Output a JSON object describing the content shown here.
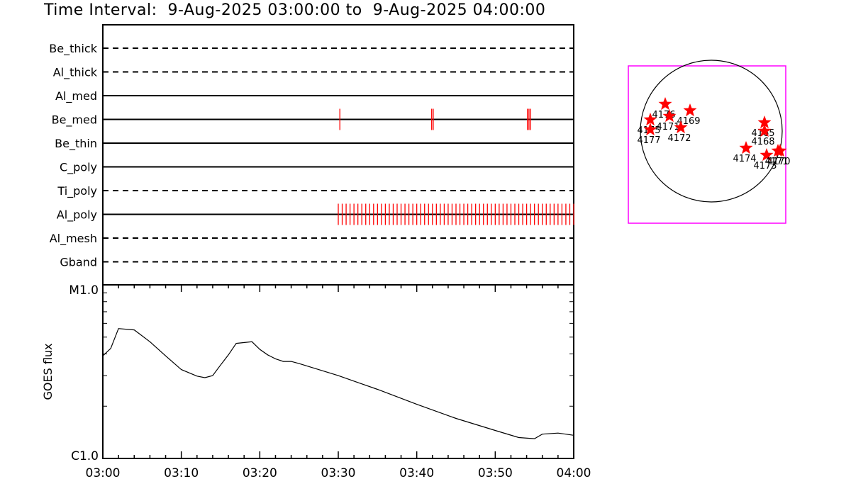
{
  "header": {
    "title_prefix": "Time Interval:",
    "start": "9-Aug-2025 03:00:00",
    "sep": "to",
    "end": "9-Aug-2025 04:00:00"
  },
  "chart_data": [
    {
      "type": "event-timeline",
      "x_range_minutes": [
        0,
        60
      ],
      "tracks": [
        {
          "name": "Be_thick",
          "style": "dashed",
          "events": []
        },
        {
          "name": "Al_thick",
          "style": "dashed",
          "events": []
        },
        {
          "name": "Al_med",
          "style": "solid",
          "events": []
        },
        {
          "name": "Be_med",
          "style": "solid",
          "events": [
            30.2,
            41.9,
            42.1,
            54.1,
            54.3,
            54.5
          ],
          "event_color": "#ff0000"
        },
        {
          "name": "Be_thin",
          "style": "solid",
          "events": []
        },
        {
          "name": "C_poly",
          "style": "solid",
          "events": []
        },
        {
          "name": "Ti_poly",
          "style": "dashed",
          "events": []
        },
        {
          "name": "Al_poly",
          "style": "solid",
          "events_range": {
            "start": 30.0,
            "end": 60.0,
            "step": 0.5
          },
          "event_color": "#ff0000"
        },
        {
          "name": "Al_mesh",
          "style": "dashed",
          "events": []
        },
        {
          "name": "Gband",
          "style": "dashed",
          "events": []
        }
      ]
    },
    {
      "type": "line",
      "ylabel": "GOES flux",
      "ylim_labels": [
        "C1.0",
        "M1.0"
      ],
      "yscale": "log",
      "ylim": [
        1e-06,
        1e-05
      ],
      "x_ticks": [
        "03:00",
        "03:10",
        "03:20",
        "03:30",
        "03:40",
        "03:50",
        "04:00"
      ],
      "x_minutes": [
        0,
        1,
        2,
        4,
        6,
        8,
        10,
        12,
        13,
        14,
        15,
        16,
        17,
        19,
        20,
        21,
        22,
        23,
        24,
        25,
        30,
        35,
        40,
        45,
        50,
        53,
        55,
        56,
        58,
        60
      ],
      "y": [
        3.9e-06,
        4.3e-06,
        5.6e-06,
        5.5e-06,
        4.7e-06,
        3.9e-06,
        3.25e-06,
        2.98e-06,
        2.92e-06,
        3e-06,
        3.45e-06,
        3.95e-06,
        4.6e-06,
        4.7e-06,
        4.25e-06,
        3.95e-06,
        3.75e-06,
        3.62e-06,
        3.62e-06,
        3.52e-06,
        3e-06,
        2.5e-06,
        2.05e-06,
        1.7e-06,
        1.45e-06,
        1.32e-06,
        1.3e-06,
        1.38e-06,
        1.4e-06,
        1.36e-06
      ]
    },
    {
      "type": "scatter",
      "description_free": true,
      "marker": "star",
      "marker_color": "#ff0000",
      "frame_color": "#ff00ff",
      "points": [
        {
          "label": "4175",
          "x": -0.86,
          "y": 0.16
        },
        {
          "label": "4176",
          "x": -0.65,
          "y": 0.38
        },
        {
          "label": "4171",
          "x": -0.59,
          "y": 0.21
        },
        {
          "label": "4169",
          "x": -0.3,
          "y": 0.29
        },
        {
          "label": "4172",
          "x": -0.43,
          "y": 0.05
        },
        {
          "label": "4177",
          "x": -0.86,
          "y": 0.02
        },
        {
          "label": "4165",
          "x": 0.75,
          "y": 0.12
        },
        {
          "label": "4168",
          "x": 0.75,
          "y": 0.0
        },
        {
          "label": "4174",
          "x": 0.49,
          "y": -0.24
        },
        {
          "label": "4173",
          "x": 0.78,
          "y": -0.34
        },
        {
          "label": "4171",
          "x": 0.94,
          "y": -0.28
        },
        {
          "label": "4170",
          "x": 0.97,
          "y": -0.28
        }
      ]
    }
  ]
}
